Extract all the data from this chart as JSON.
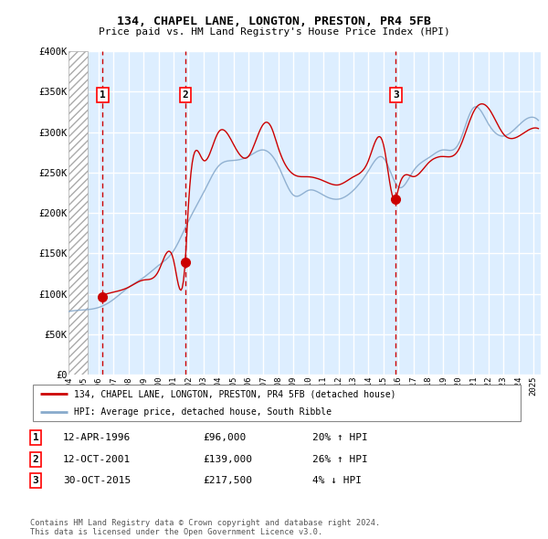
{
  "title": "134, CHAPEL LANE, LONGTON, PRESTON, PR4 5FB",
  "subtitle": "Price paid vs. HM Land Registry's House Price Index (HPI)",
  "red_label": "134, CHAPEL LANE, LONGTON, PRESTON, PR4 5FB (detached house)",
  "blue_label": "HPI: Average price, detached house, South Ribble",
  "footnote": "Contains HM Land Registry data © Crown copyright and database right 2024.\nThis data is licensed under the Open Government Licence v3.0.",
  "purchases": [
    {
      "num": 1,
      "date": "12-APR-1996",
      "price": 96000,
      "hpi_pct": "20%",
      "hpi_dir": "↑"
    },
    {
      "num": 2,
      "date": "12-OCT-2001",
      "price": 139000,
      "hpi_pct": "26%",
      "hpi_dir": "↑"
    },
    {
      "num": 3,
      "date": "30-OCT-2015",
      "price": 217500,
      "hpi_pct": "4%",
      "hpi_dir": "↓"
    }
  ],
  "purchase_years": [
    1996.28,
    2001.78,
    2015.83
  ],
  "purchase_prices": [
    96000,
    139000,
    217500
  ],
  "ylim": [
    0,
    400000
  ],
  "xlim": [
    1994.0,
    2025.5
  ],
  "hatch_end": 1995.3,
  "red_color": "#cc0000",
  "blue_color": "#88aacc",
  "dashed_color": "#cc0000",
  "bg_color": "#ddeeff",
  "hatch_color": "#aaaaaa",
  "grid_color": "#ffffff",
  "yticks": [
    0,
    50000,
    100000,
    150000,
    200000,
    250000,
    300000,
    350000,
    400000
  ],
  "ytick_labels": [
    "£0",
    "£50K",
    "£100K",
    "£150K",
    "£200K",
    "£250K",
    "£300K",
    "£350K",
    "£400K"
  ]
}
